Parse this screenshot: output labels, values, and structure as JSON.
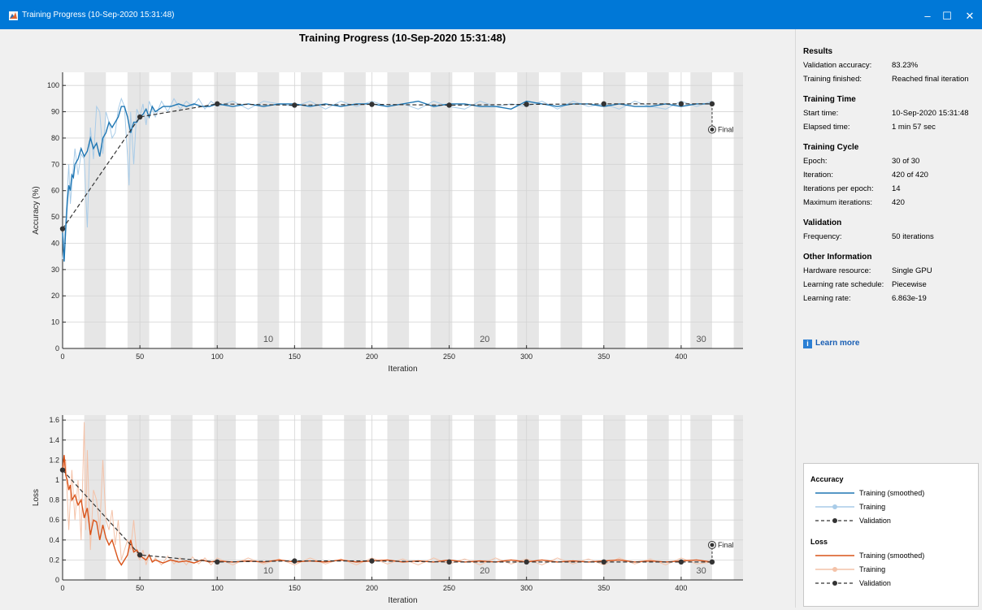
{
  "window": {
    "title": "Training Progress (10-Sep-2020 15:31:48)",
    "minimize_glyph": "–",
    "maximize_glyph": "☐",
    "close_glyph": "✕"
  },
  "sidebar": {
    "sections": [
      {
        "heading": "Results",
        "rows": [
          {
            "label": "Validation accuracy:",
            "value": "83.23%"
          },
          {
            "label": "Training finished:",
            "value": "Reached final iteration"
          }
        ]
      },
      {
        "heading": "Training Time",
        "rows": [
          {
            "label": "Start time:",
            "value": "10-Sep-2020 15:31:48"
          },
          {
            "label": "Elapsed time:",
            "value": "1 min 57 sec"
          }
        ]
      },
      {
        "heading": "Training Cycle",
        "rows": [
          {
            "label": "Epoch:",
            "value": "30 of 30"
          },
          {
            "label": "Iteration:",
            "value": "420 of 420"
          },
          {
            "label": "Iterations per epoch:",
            "value": "14"
          },
          {
            "label": "Maximum iterations:",
            "value": "420"
          }
        ]
      },
      {
        "heading": "Validation",
        "rows": [
          {
            "label": "Frequency:",
            "value": "50 iterations"
          }
        ]
      },
      {
        "heading": "Other Information",
        "rows": [
          {
            "label": "Hardware resource:",
            "value": "Single GPU"
          },
          {
            "label": "Learning rate schedule:",
            "value": "Piecewise"
          },
          {
            "label": "Learning rate:",
            "value": "6.863e-19"
          }
        ]
      }
    ],
    "learn_more": "Learn more"
  },
  "legend": {
    "groups": [
      {
        "title": "Accuracy",
        "items": [
          {
            "label": "Training (smoothed)",
            "kind": "smoothed",
            "color": "#1f77b4"
          },
          {
            "label": "Training",
            "kind": "raw",
            "color": "#a9cce8"
          },
          {
            "label": "Validation",
            "kind": "validation",
            "color": "#333333"
          }
        ]
      },
      {
        "title": "Loss",
        "items": [
          {
            "label": "Training (smoothed)",
            "kind": "smoothed",
            "color": "#d95319"
          },
          {
            "label": "Training",
            "kind": "raw",
            "color": "#f4c2a8"
          },
          {
            "label": "Validation",
            "kind": "validation",
            "color": "#333333"
          }
        ]
      }
    ]
  },
  "chart_data": [
    {
      "type": "line",
      "title": "Training Progress (10-Sep-2020 15:31:48)",
      "xlabel": "Iteration",
      "ylabel": "Accuracy (%)",
      "xlim": [
        0,
        440
      ],
      "ylim": [
        0,
        105
      ],
      "xticks": [
        0,
        50,
        100,
        150,
        200,
        250,
        300,
        350,
        400
      ],
      "yticks": [
        0,
        10,
        20,
        30,
        40,
        50,
        60,
        70,
        80,
        90,
        100
      ],
      "grid": true,
      "iterations_per_epoch": 14,
      "epoch_labels": [
        10,
        20,
        30
      ],
      "final_label": "Final",
      "final_point": {
        "x": 420,
        "y": 83.23
      },
      "colors": {
        "smoothed": "#1f77b4",
        "raw": "#a9cce8",
        "validation": "#333333",
        "band": "#e6e6e6"
      },
      "series": [
        {
          "name": "Training (smoothed)",
          "x": [
            0,
            1,
            2,
            3,
            4,
            5,
            6,
            7,
            8,
            9,
            10,
            12,
            14,
            16,
            18,
            20,
            22,
            24,
            26,
            28,
            30,
            32,
            34,
            36,
            38,
            40,
            42,
            44,
            46,
            48,
            50,
            52,
            54,
            56,
            58,
            60,
            65,
            70,
            75,
            80,
            85,
            90,
            95,
            100,
            110,
            120,
            130,
            140,
            150,
            160,
            170,
            180,
            190,
            200,
            210,
            220,
            230,
            240,
            250,
            260,
            270,
            280,
            290,
            300,
            310,
            320,
            330,
            340,
            350,
            360,
            370,
            380,
            390,
            400,
            410,
            420
          ],
          "y": [
            44,
            33,
            45,
            55,
            62,
            60,
            66,
            65,
            70,
            71,
            72,
            76,
            73,
            75,
            80,
            76,
            78,
            73,
            80,
            82,
            86,
            84,
            86,
            88,
            92,
            92,
            88,
            82,
            86,
            86,
            88,
            89,
            91,
            88,
            92,
            90,
            92,
            92,
            93,
            92,
            93,
            92,
            92,
            93,
            92,
            93,
            92,
            93,
            93,
            92,
            93,
            92,
            93,
            93,
            92,
            93,
            94,
            92,
            93,
            93,
            92,
            92,
            91,
            94,
            93,
            92,
            93,
            93,
            92,
            93,
            92,
            92,
            93,
            92,
            93,
            93
          ]
        },
        {
          "name": "Training",
          "x": [
            0,
            2,
            4,
            5,
            6,
            8,
            10,
            12,
            14,
            16,
            18,
            20,
            22,
            24,
            26,
            28,
            30,
            32,
            34,
            36,
            38,
            40,
            42,
            43,
            44,
            46,
            48,
            50,
            52,
            54,
            56,
            58,
            60,
            64,
            68,
            72,
            76,
            80,
            84,
            88,
            92,
            96,
            100,
            110,
            120,
            130,
            140,
            150,
            160,
            170,
            180,
            190,
            200,
            210,
            220,
            230,
            240,
            250,
            260,
            270,
            280,
            290,
            300,
            310,
            320,
            330,
            340,
            350,
            360,
            370,
            380,
            390,
            400,
            410,
            420
          ],
          "y": [
            34,
            48,
            70,
            55,
            62,
            76,
            66,
            74,
            72,
            46,
            84,
            72,
            92,
            90,
            74,
            90,
            86,
            80,
            82,
            91,
            95,
            92,
            73,
            62,
            90,
            70,
            91,
            88,
            93,
            85,
            94,
            91,
            88,
            94,
            90,
            95,
            91,
            94,
            92,
            95,
            91,
            94,
            92,
            94,
            91,
            94,
            93,
            92,
            94,
            91,
            94,
            92,
            94,
            92,
            93,
            91,
            94,
            92,
            91,
            94,
            92,
            93,
            92,
            94,
            91,
            94,
            92,
            93,
            91,
            94,
            92,
            91,
            94,
            92,
            94
          ]
        },
        {
          "name": "Validation",
          "x": [
            0,
            50,
            100,
            150,
            200,
            250,
            300,
            350,
            400,
            420
          ],
          "y": [
            45.5,
            88,
            93,
            92.5,
            92.8,
            92.5,
            92.8,
            93,
            93,
            93
          ]
        }
      ]
    },
    {
      "type": "line",
      "title": "",
      "xlabel": "Iteration",
      "ylabel": "Loss",
      "xlim": [
        0,
        440
      ],
      "ylim": [
        0,
        1.65
      ],
      "xticks": [
        0,
        50,
        100,
        150,
        200,
        250,
        300,
        350,
        400
      ],
      "yticks": [
        0,
        0.2,
        0.4,
        0.6,
        0.8,
        1,
        1.2,
        1.4,
        1.6
      ],
      "ytick_labels": [
        "0",
        "0.2",
        "0.4",
        "0.6",
        "0.8",
        "1",
        "1.2",
        "1.4",
        "1.6"
      ],
      "grid": true,
      "iterations_per_epoch": 14,
      "epoch_labels": [
        10,
        20,
        30
      ],
      "final_label": "Final",
      "final_point": {
        "x": 420,
        "y": 0.35
      },
      "colors": {
        "smoothed": "#d95319",
        "raw": "#f4c2a8",
        "validation": "#333333",
        "band": "#e6e6e6"
      },
      "series": [
        {
          "name": "Training (smoothed)",
          "x": [
            0,
            1,
            2,
            3,
            4,
            5,
            6,
            8,
            10,
            12,
            14,
            16,
            18,
            20,
            22,
            24,
            26,
            28,
            30,
            32,
            34,
            36,
            38,
            40,
            42,
            44,
            46,
            48,
            50,
            52,
            54,
            56,
            58,
            60,
            65,
            70,
            75,
            80,
            85,
            90,
            95,
            100,
            110,
            120,
            130,
            140,
            150,
            160,
            170,
            180,
            190,
            200,
            210,
            220,
            230,
            240,
            250,
            260,
            270,
            280,
            290,
            300,
            310,
            320,
            330,
            340,
            350,
            360,
            370,
            380,
            390,
            400,
            410,
            420
          ],
          "y": [
            1.1,
            1.25,
            1.05,
            1.0,
            0.9,
            0.95,
            0.8,
            0.85,
            0.75,
            0.8,
            0.62,
            0.72,
            0.45,
            0.6,
            0.58,
            0.4,
            0.55,
            0.42,
            0.35,
            0.4,
            0.3,
            0.2,
            0.15,
            0.2,
            0.25,
            0.4,
            0.28,
            0.3,
            0.25,
            0.22,
            0.2,
            0.25,
            0.18,
            0.2,
            0.17,
            0.2,
            0.18,
            0.19,
            0.17,
            0.2,
            0.18,
            0.19,
            0.18,
            0.19,
            0.18,
            0.2,
            0.18,
            0.19,
            0.18,
            0.2,
            0.18,
            0.19,
            0.2,
            0.18,
            0.19,
            0.18,
            0.2,
            0.18,
            0.19,
            0.18,
            0.2,
            0.18,
            0.2,
            0.18,
            0.19,
            0.18,
            0.19,
            0.2,
            0.18,
            0.19,
            0.18,
            0.19,
            0.2,
            0.18
          ]
        },
        {
          "name": "Training",
          "x": [
            0,
            2,
            4,
            6,
            8,
            10,
            12,
            14,
            15,
            16,
            18,
            20,
            22,
            24,
            26,
            28,
            30,
            32,
            34,
            36,
            38,
            40,
            42,
            44,
            46,
            48,
            50,
            52,
            54,
            56,
            58,
            60,
            64,
            68,
            72,
            76,
            80,
            84,
            88,
            92,
            96,
            100,
            110,
            120,
            130,
            140,
            150,
            160,
            170,
            180,
            190,
            200,
            210,
            220,
            230,
            240,
            250,
            260,
            270,
            280,
            290,
            300,
            310,
            320,
            330,
            340,
            350,
            360,
            370,
            380,
            390,
            400,
            410,
            420
          ],
          "y": [
            1.1,
            1.2,
            0.5,
            1.1,
            0.6,
            1.0,
            0.4,
            1.58,
            0.5,
            1.3,
            0.3,
            0.9,
            0.8,
            0.5,
            1.2,
            0.6,
            0.5,
            0.7,
            0.35,
            0.6,
            0.2,
            0.3,
            0.4,
            0.3,
            0.6,
            0.25,
            0.2,
            0.3,
            0.15,
            0.25,
            0.18,
            0.22,
            0.15,
            0.24,
            0.16,
            0.22,
            0.15,
            0.23,
            0.16,
            0.22,
            0.15,
            0.22,
            0.15,
            0.22,
            0.16,
            0.21,
            0.15,
            0.22,
            0.16,
            0.21,
            0.15,
            0.22,
            0.16,
            0.21,
            0.15,
            0.22,
            0.16,
            0.21,
            0.15,
            0.22,
            0.16,
            0.21,
            0.15,
            0.22,
            0.16,
            0.21,
            0.15,
            0.22,
            0.16,
            0.21,
            0.15,
            0.22,
            0.16,
            0.18
          ]
        },
        {
          "name": "Validation",
          "x": [
            0,
            50,
            100,
            150,
            200,
            250,
            300,
            350,
            400,
            420
          ],
          "y": [
            1.1,
            0.25,
            0.18,
            0.19,
            0.19,
            0.18,
            0.18,
            0.18,
            0.18,
            0.18
          ]
        }
      ]
    }
  ]
}
